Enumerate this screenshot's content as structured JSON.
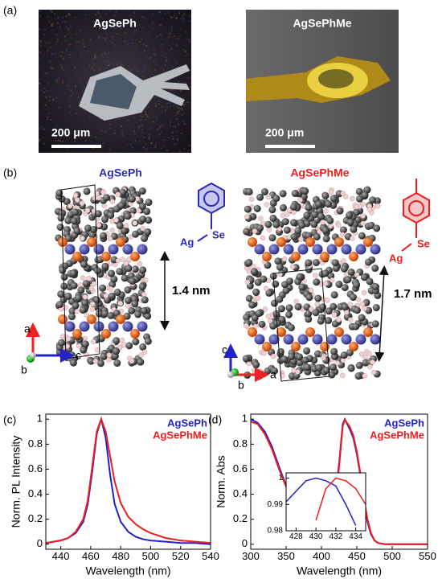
{
  "panel_a": {
    "label": "(a)",
    "images": [
      {
        "title": "AgSePh",
        "scale_bar": "200 μm"
      },
      {
        "title": "AgSePhMe",
        "scale_bar": "200 μm"
      }
    ]
  },
  "panel_b": {
    "label": "(b)",
    "structures": [
      {
        "title": "AgSePh",
        "color": "#2b2bb8",
        "atoms": [
          "Ag",
          "Se"
        ],
        "spacing": "1.4 nm",
        "axes": [
          "a",
          "b",
          "c"
        ]
      },
      {
        "title": "AgSePhMe",
        "color": "#ee1c1c",
        "atoms": [
          "Ag",
          "Se"
        ],
        "spacing": "1.7 nm",
        "axes": [
          "c",
          "b",
          "a"
        ]
      }
    ]
  },
  "chart_data": [
    {
      "type": "line",
      "panel_label": "(c)",
      "xlabel": "Wavelength (nm)",
      "ylabel": "Norm. PL Intensity",
      "xlim": [
        430,
        540
      ],
      "ylim": [
        -0.04,
        1.04
      ],
      "xticks": [
        440,
        460,
        480,
        500,
        520,
        540
      ],
      "yticks": [
        0,
        0.2,
        0.4,
        0.6,
        0.8,
        1
      ],
      "legend": "upper right",
      "x": [
        430,
        435,
        440,
        445,
        450,
        455,
        458,
        461,
        464,
        467,
        470,
        473,
        476,
        480,
        485,
        490,
        495,
        500,
        510,
        520,
        530,
        540
      ],
      "series": [
        {
          "name": "AgSePh",
          "color": "#2222cc",
          "values": [
            0.01,
            0.02,
            0.03,
            0.05,
            0.09,
            0.18,
            0.32,
            0.58,
            0.88,
            1.0,
            0.85,
            0.55,
            0.32,
            0.18,
            0.1,
            0.06,
            0.04,
            0.03,
            0.02,
            0.01,
            0.01,
            0.0
          ]
        },
        {
          "name": "AgSePhMe",
          "color": "#ee1c1c",
          "values": [
            0.01,
            0.02,
            0.03,
            0.05,
            0.1,
            0.2,
            0.35,
            0.62,
            0.9,
            1.0,
            0.9,
            0.7,
            0.5,
            0.33,
            0.22,
            0.16,
            0.12,
            0.09,
            0.05,
            0.03,
            0.02,
            0.01
          ]
        }
      ]
    },
    {
      "type": "line",
      "panel_label": "(d)",
      "xlabel": "Wavelength (nm)",
      "ylabel": "Norm. Abs",
      "xlim": [
        300,
        550
      ],
      "ylim": [
        -0.04,
        1.04
      ],
      "xticks": [
        300,
        350,
        400,
        450,
        500,
        550
      ],
      "yticks": [
        0,
        0.2,
        0.4,
        0.6,
        0.8,
        1
      ],
      "legend": "upper right",
      "x": [
        300,
        310,
        320,
        330,
        340,
        350,
        360,
        370,
        380,
        390,
        400,
        410,
        420,
        425,
        430,
        433,
        440,
        445,
        450,
        455,
        460,
        465,
        470,
        475,
        480,
        490,
        500,
        525,
        550
      ],
      "series": [
        {
          "name": "AgSePh",
          "color": "#2222cc",
          "values": [
            1.0,
            0.97,
            0.9,
            0.78,
            0.62,
            0.47,
            0.35,
            0.27,
            0.21,
            0.18,
            0.18,
            0.22,
            0.4,
            0.65,
            0.96,
            1.0,
            0.92,
            0.85,
            0.72,
            0.55,
            0.35,
            0.18,
            0.08,
            0.03,
            0.01,
            0,
            0,
            0,
            0
          ]
        },
        {
          "name": "AgSePhMe",
          "color": "#ee1c1c",
          "values": [
            0.98,
            0.96,
            0.88,
            0.76,
            0.6,
            0.46,
            0.34,
            0.26,
            0.21,
            0.18,
            0.18,
            0.22,
            0.38,
            0.62,
            0.94,
            0.995,
            0.94,
            0.87,
            0.74,
            0.57,
            0.37,
            0.2,
            0.09,
            0.03,
            0.01,
            0,
            0,
            0,
            0
          ]
        }
      ]
    },
    {
      "type": "line",
      "xlim": [
        427,
        435
      ],
      "ylim": [
        0.98,
        1.002
      ],
      "xticks": [
        428,
        430,
        432,
        434
      ],
      "yticks": [
        0.98,
        0.99,
        1
      ],
      "x": [
        427,
        428,
        429,
        430,
        431,
        432,
        433,
        434,
        435
      ],
      "series": [
        {
          "color": "#2222cc",
          "values": [
            0.991,
            0.995,
            0.999,
            1.0,
            0.999,
            0.997,
            0.99,
            0.982,
            null
          ]
        },
        {
          "color": "#ee1c1c",
          "values": [
            null,
            null,
            null,
            0.984,
            0.996,
            1.0,
            0.999,
            0.996,
            0.99
          ]
        }
      ]
    }
  ]
}
